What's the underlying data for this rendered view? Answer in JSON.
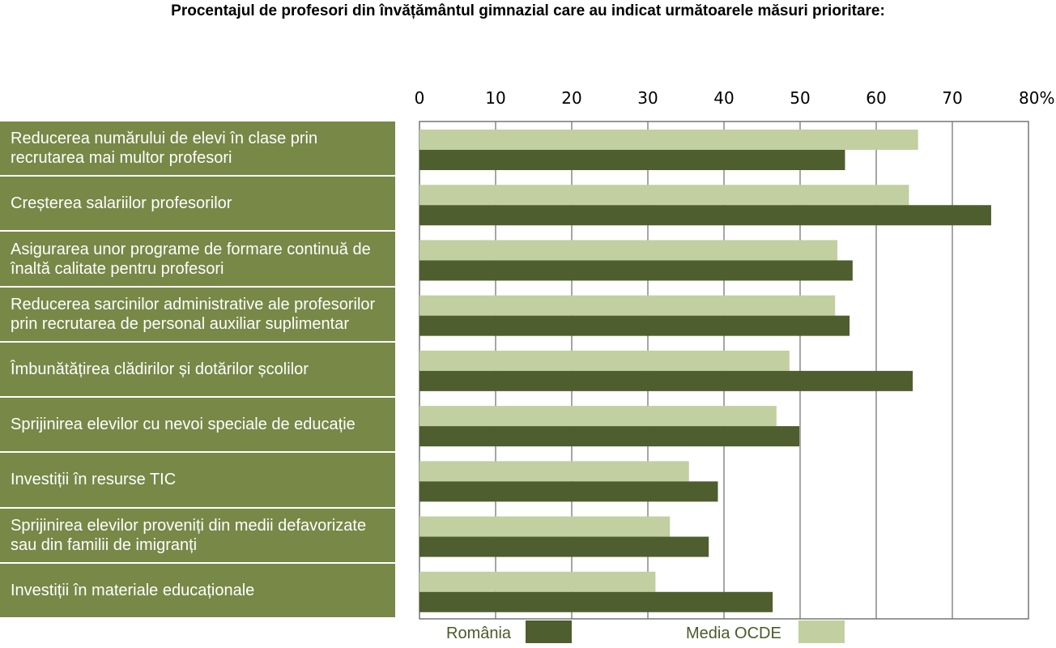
{
  "title": "Procentajul de profesori din învățământul gimnazial care au indicat următoarele măsuri prioritare:",
  "colors": {
    "romania": "#4e5e2e",
    "ocde": "#c2cfa0",
    "category_bg": "#778847",
    "grid": "#777777"
  },
  "chart_data": {
    "type": "bar",
    "orientation": "horizontal",
    "title": "Procentajul de profesori din învățământul gimnazial care au indicat următoarele măsuri prioritare:",
    "categories": [
      "Reducerea numărului de elevi în clase prin recrutarea mai multor profesori",
      "Creșterea salariilor profesorilor",
      "Asigurarea unor programe de formare continuă de înaltă calitate pentru profesori",
      "Reducerea sarcinilor administrative ale profesorilor prin recrutarea de personal auxiliar suplimentar",
      "Îmbunătățirea clădirilor și dotărilor școlilor",
      "Sprijinirea elevilor cu nevoi speciale de educație",
      "Investiții în resurse TIC",
      "Sprijinirea elevilor proveniți din medii defavorizate sau din familii de imigranți",
      "Investiții în materiale educaționale"
    ],
    "series": [
      {
        "name": "Media OCDE",
        "values": [
          65.5,
          64.3,
          54.9,
          54.6,
          48.6,
          46.9,
          35.4,
          32.9,
          31.0
        ]
      },
      {
        "name": "România",
        "values": [
          55.9,
          75.1,
          56.9,
          56.5,
          64.8,
          49.9,
          39.2,
          38.0,
          46.4
        ]
      }
    ],
    "xlim": [
      0,
      80
    ],
    "ticks": [
      "0",
      "10",
      "20",
      "30",
      "40",
      "50",
      "60",
      "70",
      "80%"
    ],
    "grid": true,
    "legend": {
      "position": "bottom",
      "items": [
        "România",
        "Media OCDE"
      ]
    }
  }
}
